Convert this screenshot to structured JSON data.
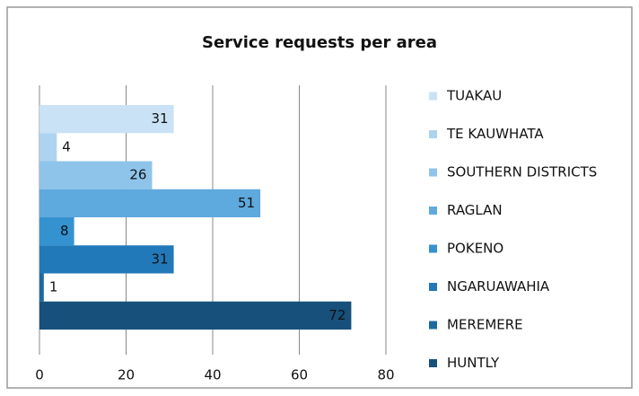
{
  "chart_data": {
    "type": "bar",
    "orientation": "horizontal",
    "title": "Service requests per area",
    "categories": [
      "TUAKAU",
      "TE KAUWHATA",
      "SOUTHERN DISTRICTS",
      "RAGLAN",
      "POKENO",
      "NGARUAWAHIA",
      "MEREMERE",
      "HUNTLY"
    ],
    "values": [
      31,
      4,
      26,
      51,
      8,
      31,
      1,
      72
    ],
    "colors": [
      "#c9e2f6",
      "#aed3f0",
      "#8fc4ea",
      "#5ea9de",
      "#3592d1",
      "#2279b9",
      "#1c6a9f",
      "#16507b"
    ],
    "xlim": [
      0,
      80
    ],
    "xticks": [
      0,
      20,
      40,
      60,
      80
    ],
    "grid": true,
    "legend": "right"
  }
}
